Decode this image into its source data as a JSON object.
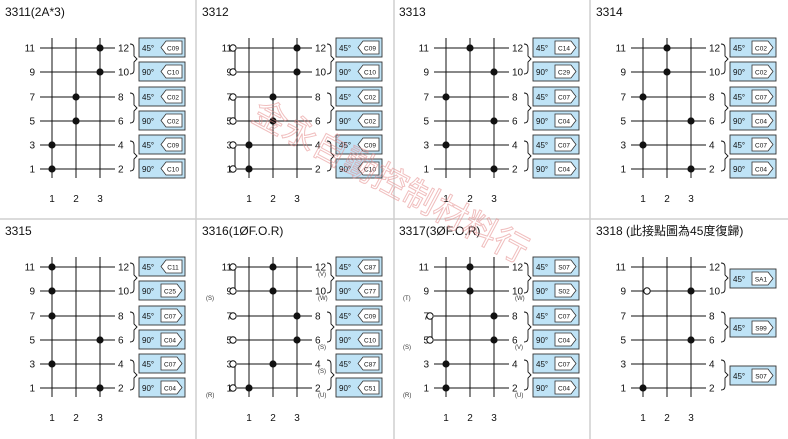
{
  "panels": [
    {
      "title": "3311(2A*3)",
      "left": [
        "11",
        "9",
        "7",
        "5",
        "3",
        "1"
      ],
      "right": [
        "12",
        "10",
        "8",
        "6",
        "4",
        "2"
      ],
      "cols": [
        "1",
        "2",
        "3"
      ],
      "dots": [
        [
          2,
          0
        ],
        [
          2,
          1
        ],
        [
          1,
          2
        ],
        [
          1,
          3
        ],
        [
          0,
          4
        ],
        [
          0,
          5
        ]
      ],
      "open": [],
      "links": [],
      "dash": [],
      "groups": [
        {
          "p": [
            0,
            1
          ],
          "rows": [
            [
              "45°",
              "C09",
              "L"
            ],
            [
              "90°",
              "C10",
              "L"
            ]
          ]
        },
        {
          "p": [
            2,
            3
          ],
          "rows": [
            [
              "45°",
              "C02",
              "L"
            ],
            [
              "90°",
              "C02",
              "L"
            ]
          ]
        },
        {
          "p": [
            4,
            5
          ],
          "rows": [
            [
              "45°",
              "C09",
              "L"
            ],
            [
              "90°",
              "C10",
              "L"
            ]
          ]
        }
      ]
    },
    {
      "title": "3312",
      "left": [
        "11",
        "9",
        "7",
        "5",
        "3",
        "1"
      ],
      "right": [
        "12",
        "10",
        "8",
        "6",
        "4",
        "2"
      ],
      "cols": [
        "1",
        "2",
        "3"
      ],
      "dots": [
        [
          2,
          0
        ],
        [
          2,
          1
        ],
        [
          1,
          2
        ],
        [
          1,
          3
        ],
        [
          0,
          4
        ],
        [
          0,
          5
        ]
      ],
      "open": [
        [
          0,
          0
        ],
        [
          0,
          1
        ],
        [
          0,
          2
        ],
        [
          0,
          3
        ],
        [
          0,
          4
        ],
        [
          0,
          5
        ]
      ],
      "links": [
        [
          0,
          1
        ],
        [
          2,
          3
        ],
        [
          4,
          5
        ]
      ],
      "dash": [],
      "groups": [
        {
          "p": [
            0,
            1
          ],
          "rows": [
            [
              "45°",
              "C09",
              "L"
            ],
            [
              "90°",
              "C10",
              "L"
            ]
          ]
        },
        {
          "p": [
            2,
            3
          ],
          "rows": [
            [
              "45°",
              "C02",
              "L"
            ],
            [
              "90°",
              "C02",
              "L"
            ]
          ]
        },
        {
          "p": [
            4,
            5
          ],
          "rows": [
            [
              "45°",
              "C09",
              "L"
            ],
            [
              "90°",
              "C10",
              "L"
            ]
          ]
        }
      ]
    },
    {
      "title": "3313",
      "left": [
        "11",
        "9",
        "7",
        "5",
        "3",
        "1"
      ],
      "right": [
        "12",
        "10",
        "8",
        "6",
        "4",
        "2"
      ],
      "cols": [
        "1",
        "2",
        "3"
      ],
      "dots": [
        [
          1,
          0
        ],
        [
          2,
          1
        ],
        [
          0,
          2
        ],
        [
          2,
          3
        ],
        [
          0,
          4
        ],
        [
          2,
          5
        ]
      ],
      "open": [],
      "links": [],
      "dash": [],
      "groups": [
        {
          "p": [
            0,
            1
          ],
          "rows": [
            [
              "45°",
              "C14",
              "R"
            ],
            [
              "90°",
              "C29",
              "R"
            ]
          ]
        },
        {
          "p": [
            2,
            3
          ],
          "rows": [
            [
              "45°",
              "C07",
              "R"
            ],
            [
              "90°",
              "C04",
              "R"
            ]
          ]
        },
        {
          "p": [
            4,
            5
          ],
          "rows": [
            [
              "45°",
              "C07",
              "R"
            ],
            [
              "90°",
              "C04",
              "R"
            ]
          ]
        }
      ]
    },
    {
      "title": "3314",
      "left": [
        "11",
        "9",
        "7",
        "5",
        "3",
        "1"
      ],
      "right": [
        "12",
        "10",
        "8",
        "6",
        "4",
        "2"
      ],
      "cols": [
        "1",
        "2",
        "3"
      ],
      "dots": [
        [
          1,
          0
        ],
        [
          1,
          1
        ],
        [
          0,
          2
        ],
        [
          2,
          3
        ],
        [
          0,
          4
        ],
        [
          2,
          5
        ]
      ],
      "open": [],
      "links": [],
      "dash": [],
      "groups": [
        {
          "p": [
            0,
            1
          ],
          "rows": [
            [
              "45°",
              "C02",
              "R"
            ],
            [
              "90°",
              "C02",
              "R"
            ]
          ]
        },
        {
          "p": [
            2,
            3
          ],
          "rows": [
            [
              "45°",
              "C07",
              "R"
            ],
            [
              "90°",
              "C04",
              "R"
            ]
          ]
        },
        {
          "p": [
            4,
            5
          ],
          "rows": [
            [
              "45°",
              "C07",
              "R"
            ],
            [
              "90°",
              "C04",
              "R"
            ]
          ]
        }
      ]
    },
    {
      "title": "3315",
      "left": [
        "11",
        "9",
        "7",
        "5",
        "3",
        "1"
      ],
      "right": [
        "12",
        "10",
        "8",
        "6",
        "4",
        "2"
      ],
      "cols": [
        "1",
        "2",
        "3"
      ],
      "dots": [
        [
          0,
          0
        ],
        [
          0,
          1
        ],
        [
          0,
          2
        ],
        [
          2,
          3
        ],
        [
          0,
          4
        ],
        [
          2,
          5
        ]
      ],
      "open": [],
      "links": [],
      "dash": [],
      "groups": [
        {
          "p": [
            0,
            1
          ],
          "rows": [
            [
              "45°",
              "C11",
              "L"
            ],
            [
              "90°",
              "C25",
              "R"
            ]
          ]
        },
        {
          "p": [
            2,
            3
          ],
          "rows": [
            [
              "45°",
              "C07",
              "R"
            ],
            [
              "90°",
              "C04",
              "R"
            ]
          ]
        },
        {
          "p": [
            4,
            5
          ],
          "rows": [
            [
              "45°",
              "C07",
              "R"
            ],
            [
              "90°",
              "C04",
              "R"
            ]
          ]
        }
      ]
    },
    {
      "title": "3316(1ØF.O.R)",
      "left": [
        "11",
        "9",
        "7",
        "5",
        "3",
        "1"
      ],
      "right": [
        "12",
        "10",
        "8",
        "6",
        "4",
        "2"
      ],
      "cols": [
        "1",
        "2",
        "3"
      ],
      "sl": [
        "",
        "(S)",
        "",
        "",
        "",
        "(R)"
      ],
      "sr": [
        "(V)",
        "(W)",
        "",
        "(S)",
        "(S)",
        "(U)"
      ],
      "dots": [
        [
          1,
          0
        ],
        [
          1,
          1
        ],
        [
          2,
          2
        ],
        [
          2,
          3
        ],
        [
          1,
          4
        ],
        [
          0,
          5
        ]
      ],
      "open": [
        [
          0,
          0
        ],
        [
          0,
          1
        ],
        [
          0,
          2
        ],
        [
          0,
          3
        ],
        [
          0,
          4
        ],
        [
          0,
          5
        ]
      ],
      "links": [
        [
          0,
          1
        ],
        [
          4,
          5
        ]
      ],
      "dash": [],
      "groups": [
        {
          "p": [
            0,
            1
          ],
          "rows": [
            [
              "45°",
              "C87",
              "L"
            ],
            [
              "90°",
              "C77",
              "L"
            ]
          ]
        },
        {
          "p": [
            2,
            3
          ],
          "rows": [
            [
              "45°",
              "C09",
              "L"
            ],
            [
              "90°",
              "C10",
              "L"
            ]
          ]
        },
        {
          "p": [
            4,
            5
          ],
          "rows": [
            [
              "45°",
              "C87",
              "L"
            ],
            [
              "90°",
              "C51",
              "L"
            ]
          ]
        }
      ]
    },
    {
      "title": "3317(3ØF.O.R)",
      "left": [
        "11",
        "9",
        "7",
        "5",
        "3",
        "1"
      ],
      "right": [
        "12",
        "10",
        "8",
        "6",
        "4",
        "2"
      ],
      "cols": [
        "1",
        "2",
        "3"
      ],
      "sl": [
        "",
        "(T)",
        "",
        "(S)",
        "",
        "(R)"
      ],
      "sr": [
        "",
        "(W)",
        "",
        "(V)",
        "",
        "(U)"
      ],
      "dots": [
        [
          1,
          0
        ],
        [
          1,
          1
        ],
        [
          2,
          2
        ],
        [
          2,
          3
        ],
        [
          0,
          4
        ],
        [
          0,
          5
        ]
      ],
      "open": [
        [
          0,
          2
        ],
        [
          0,
          3
        ]
      ],
      "links": [
        [
          2,
          3
        ]
      ],
      "dash": [],
      "groups": [
        {
          "p": [
            0,
            1
          ],
          "rows": [
            [
              "45°",
              "S07",
              "R"
            ],
            [
              "90°",
              "S02",
              "R"
            ]
          ]
        },
        {
          "p": [
            2,
            3
          ],
          "rows": [
            [
              "45°",
              "C07",
              "R"
            ],
            [
              "90°",
              "C04",
              "R"
            ]
          ]
        },
        {
          "p": [
            4,
            5
          ],
          "rows": [
            [
              "45°",
              "C07",
              "R"
            ],
            [
              "90°",
              "C04",
              "R"
            ]
          ]
        }
      ]
    },
    {
      "title": "3318 (此接點圖為45度復歸)",
      "left": [
        "11",
        "9",
        "7",
        "5",
        "3",
        "1"
      ],
      "right": [
        "12",
        "10",
        "8",
        "6",
        "4",
        "2"
      ],
      "cols": [
        "1",
        "2",
        "3"
      ],
      "dots": [
        [
          2,
          1
        ],
        [
          2,
          3
        ],
        [
          0,
          5
        ]
      ],
      "open": [],
      "links": [],
      "dash": [
        1
      ],
      "groups": [
        {
          "p": [
            0,
            1
          ],
          "rows": [
            [
              "45°",
              "SA1",
              "R"
            ]
          ]
        },
        {
          "p": [
            2,
            3
          ],
          "rows": [
            [
              "45°",
              "S99",
              "R"
            ]
          ]
        },
        {
          "p": [
            4,
            5
          ],
          "rows": [
            [
              "45°",
              "S07",
              "R"
            ]
          ]
        }
      ]
    }
  ],
  "colors": {
    "box": "#bfe3f6",
    "boxLine": "#333333",
    "line": "#111111",
    "divider": "#cfcfcf",
    "watermark": "#e58a8a"
  },
  "watermark": "金永自動控制材料行"
}
